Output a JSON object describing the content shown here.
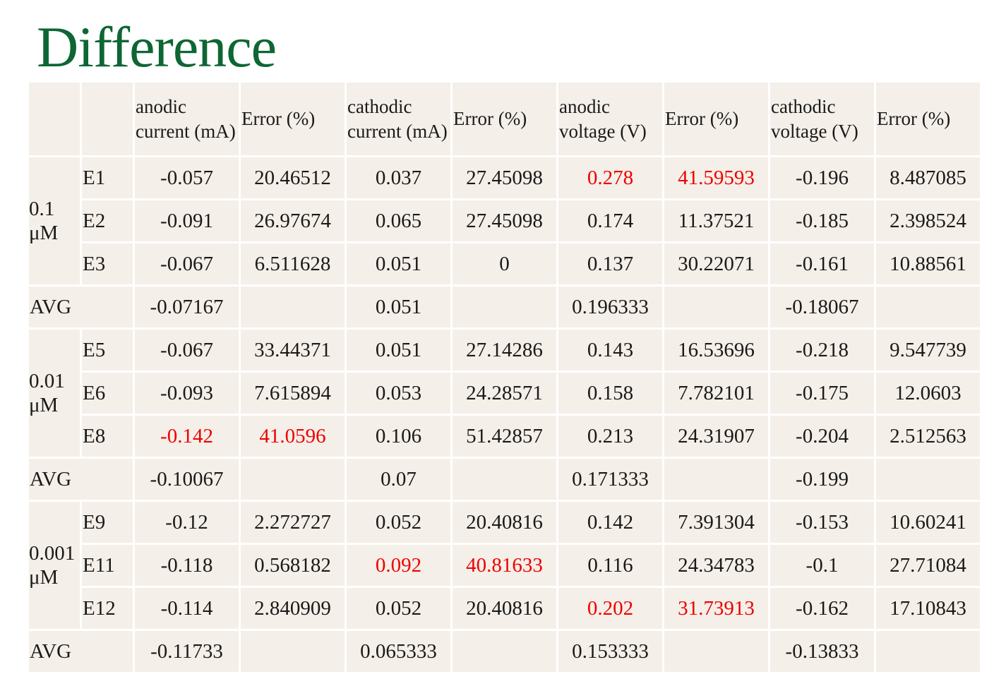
{
  "title": "Difference",
  "headers": [
    "anodic current (mA)",
    "Error (%)",
    "cathodic current (mA)",
    "Error (%)",
    "anodic voltage (V)",
    "Error (%)",
    "cathodic voltage (V)",
    "Error (%)"
  ],
  "highlight_color": "#ee0000",
  "groups": [
    {
      "label": "0.1 μM",
      "rows": [
        {
          "id": "E1",
          "values": [
            "-0.057",
            "20.46512",
            "0.037",
            "27.45098",
            "0.278",
            "41.59593",
            "-0.196",
            "8.487085"
          ]
        },
        {
          "id": "E2",
          "values": [
            "-0.091",
            "26.97674",
            "0.065",
            "27.45098",
            "0.174",
            "11.37521",
            "-0.185",
            "2.398524"
          ]
        },
        {
          "id": "E3",
          "values": [
            "-0.067",
            "6.511628",
            "0.051",
            "0",
            "0.137",
            "30.22071",
            "-0.161",
            "10.88561"
          ]
        }
      ],
      "avg": {
        "label": "AVG",
        "values": [
          "-0.07167",
          "",
          "0.051",
          "",
          "0.196333",
          "",
          "-0.18067",
          ""
        ]
      }
    },
    {
      "label": "0.01 μM",
      "rows": [
        {
          "id": "E5",
          "values": [
            "-0.067",
            "33.44371",
            "0.051",
            "27.14286",
            "0.143",
            "16.53696",
            "-0.218",
            "9.547739"
          ]
        },
        {
          "id": "E6",
          "values": [
            "-0.093",
            "7.615894",
            "0.053",
            "24.28571",
            "0.158",
            "7.782101",
            "-0.175",
            "12.0603"
          ]
        },
        {
          "id": "E8",
          "values": [
            "-0.142",
            "41.0596",
            "0.106",
            "51.42857",
            "0.213",
            "24.31907",
            "-0.204",
            "2.512563"
          ]
        }
      ],
      "avg": {
        "label": "AVG",
        "values": [
          "-0.10067",
          "",
          "0.07",
          "",
          "0.171333",
          "",
          "-0.199",
          ""
        ]
      }
    },
    {
      "label": "0.001 μM",
      "rows": [
        {
          "id": "E9",
          "values": [
            "-0.12",
            "2.272727",
            "0.052",
            "20.40816",
            "0.142",
            "7.391304",
            "-0.153",
            "10.60241"
          ]
        },
        {
          "id": "E11",
          "values": [
            "-0.118",
            "0.568182",
            "0.092",
            "40.81633",
            "0.116",
            "24.34783",
            "-0.1",
            "27.71084"
          ]
        },
        {
          "id": "E12",
          "values": [
            "-0.114",
            "2.840909",
            "0.052",
            "20.40816",
            "0.202",
            "31.73913",
            "-0.162",
            "17.10843"
          ]
        }
      ],
      "avg": {
        "label": "AVG",
        "values": [
          "-0.11733",
          "",
          "0.065333",
          "",
          "0.153333",
          "",
          "-0.13833",
          ""
        ]
      }
    }
  ]
}
